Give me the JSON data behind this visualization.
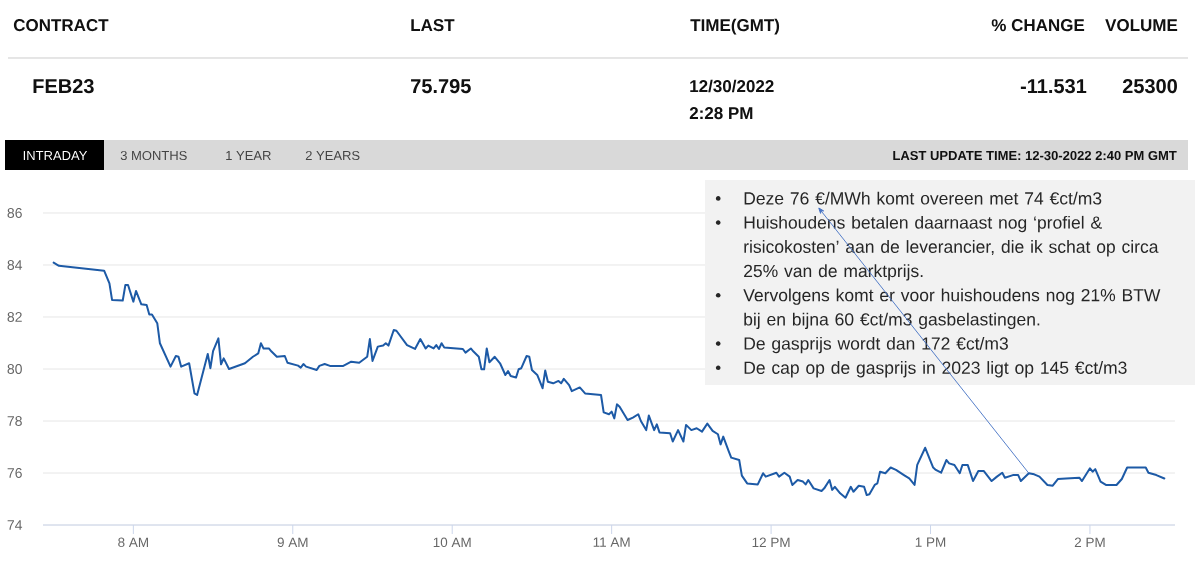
{
  "chart_data": {
    "type": "line",
    "color": "#1d5aa6",
    "x": [
      "2022-12-30T07:30",
      "2022-12-30T07:32",
      "2022-12-30T07:49",
      "2022-12-30T07:51",
      "2022-12-30T07:52",
      "2022-12-30T07:56",
      "2022-12-30T07:57",
      "2022-12-30T07:58",
      "2022-12-30T08:00",
      "2022-12-30T08:01",
      "2022-12-30T08:03",
      "2022-12-30T08:05",
      "2022-12-30T08:06",
      "2022-12-30T08:07",
      "2022-12-30T08:09",
      "2022-12-30T08:10",
      "2022-12-30T08:14",
      "2022-12-30T08:16",
      "2022-12-30T08:17",
      "2022-12-30T08:18",
      "2022-12-30T08:21",
      "2022-12-30T08:23",
      "2022-12-30T08:24",
      "2022-12-30T08:28",
      "2022-12-30T08:29",
      "2022-12-30T08:30",
      "2022-12-30T08:32",
      "2022-12-30T08:33",
      "2022-12-30T08:34",
      "2022-12-30T08:36",
      "2022-12-30T08:42",
      "2022-12-30T08:45",
      "2022-12-30T08:47",
      "2022-12-30T08:48",
      "2022-12-30T08:49",
      "2022-12-30T08:51",
      "2022-12-30T08:52",
      "2022-12-30T08:54",
      "2022-12-30T08:57",
      "2022-12-30T08:58",
      "2022-12-30T09:02",
      "2022-12-30T09:03",
      "2022-12-30T09:04",
      "2022-12-30T09:05",
      "2022-12-30T09:09",
      "2022-12-30T09:10",
      "2022-12-30T09:12",
      "2022-12-30T09:14",
      "2022-12-30T09:19",
      "2022-12-30T09:22",
      "2022-12-30T09:25",
      "2022-12-30T09:28",
      "2022-12-30T09:29",
      "2022-12-30T09:30",
      "2022-12-30T09:32",
      "2022-12-30T09:34",
      "2022-12-30T09:35",
      "2022-12-30T09:36",
      "2022-12-30T09:38",
      "2022-12-30T09:39",
      "2022-12-30T09:43",
      "2022-12-30T09:46",
      "2022-12-30T09:48",
      "2022-12-30T09:50",
      "2022-12-30T09:51",
      "2022-12-30T09:53",
      "2022-12-30T09:54",
      "2022-12-30T09:55",
      "2022-12-30T09:56",
      "2022-12-30T09:57",
      "2022-12-30T10:04",
      "2022-12-30T10:05",
      "2022-12-30T10:07",
      "2022-12-30T10:08",
      "2022-12-30T10:10",
      "2022-12-30T10:11",
      "2022-12-30T10:12",
      "2022-12-30T10:13",
      "2022-12-30T10:14",
      "2022-12-30T10:16",
      "2022-12-30T10:18",
      "2022-12-30T10:20",
      "2022-12-30T10:21",
      "2022-12-30T10:22",
      "2022-12-30T10:24",
      "2022-12-30T10:25",
      "2022-12-30T10:26",
      "2022-12-30T10:28",
      "2022-12-30T10:29",
      "2022-12-30T10:30",
      "2022-12-30T10:32",
      "2022-12-30T10:34",
      "2022-12-30T10:35",
      "2022-12-30T10:36",
      "2022-12-30T10:38",
      "2022-12-30T10:40",
      "2022-12-30T10:41",
      "2022-12-30T10:42",
      "2022-12-30T10:44",
      "2022-12-30T10:45",
      "2022-12-30T10:48",
      "2022-12-30T10:50",
      "2022-12-30T10:56",
      "2022-12-30T10:57",
      "2022-12-30T10:59",
      "2022-12-30T11:00",
      "2022-12-30T11:01",
      "2022-12-30T11:02",
      "2022-12-30T11:03",
      "2022-12-30T11:06",
      "2022-12-30T11:08",
      "2022-12-30T11:10",
      "2022-12-30T11:11",
      "2022-12-30T11:13",
      "2022-12-30T11:14",
      "2022-12-30T11:16",
      "2022-12-30T11:17",
      "2022-12-30T11:18",
      "2022-12-30T11:22",
      "2022-12-30T11:23",
      "2022-12-30T11:25",
      "2022-12-30T11:27",
      "2022-12-30T11:28",
      "2022-12-30T11:30",
      "2022-12-30T11:32",
      "2022-12-30T11:34",
      "2022-12-30T11:36",
      "2022-12-30T11:38",
      "2022-12-30T11:40",
      "2022-12-30T11:41",
      "2022-12-30T11:42",
      "2022-12-30T11:44",
      "2022-12-30T11:45",
      "2022-12-30T11:48",
      "2022-12-30T11:49",
      "2022-12-30T11:51",
      "2022-12-30T11:55",
      "2022-12-30T11:57",
      "2022-12-30T11:58",
      "2022-12-30T12:02",
      "2022-12-30T12:03",
      "2022-12-30T12:05",
      "2022-12-30T12:07",
      "2022-12-30T12:08",
      "2022-12-30T12:10",
      "2022-12-30T12:12",
      "2022-12-30T12:13",
      "2022-12-30T12:14",
      "2022-12-30T12:16",
      "2022-12-30T12:19",
      "2022-12-30T12:20",
      "2022-12-30T12:22",
      "2022-12-30T12:23",
      "2022-12-30T12:24",
      "2022-12-30T12:26",
      "2022-12-30T12:28",
      "2022-12-30T12:30",
      "2022-12-30T12:31",
      "2022-12-30T12:33",
      "2022-12-30T12:35",
      "2022-12-30T12:36",
      "2022-12-30T12:37",
      "2022-12-30T12:39",
      "2022-12-30T12:40",
      "2022-12-30T12:41",
      "2022-12-30T12:43",
      "2022-12-30T12:45",
      "2022-12-30T12:47",
      "2022-12-30T12:50",
      "2022-12-30T12:52",
      "2022-12-30T12:54",
      "2022-12-30T12:55",
      "2022-12-30T12:58",
      "2022-12-30T13:01",
      "2022-12-30T13:02",
      "2022-12-30T13:04",
      "2022-12-30T13:06",
      "2022-12-30T13:07",
      "2022-12-30T13:09",
      "2022-12-30T13:11",
      "2022-12-30T13:12",
      "2022-12-30T13:14",
      "2022-12-30T13:16",
      "2022-12-30T13:18",
      "2022-12-30T13:20",
      "2022-12-30T13:23",
      "2022-12-30T13:25",
      "2022-12-30T13:27",
      "2022-12-30T13:28",
      "2022-12-30T13:31",
      "2022-12-30T13:33",
      "2022-12-30T13:34",
      "2022-12-30T13:37",
      "2022-12-30T13:39",
      "2022-12-30T13:41",
      "2022-12-30T13:44",
      "2022-12-30T13:46",
      "2022-12-30T13:48",
      "2022-12-30T13:51",
      "2022-12-30T13:56",
      "2022-12-30T13:57",
      "2022-12-30T14:00",
      "2022-12-30T14:01",
      "2022-12-30T14:02",
      "2022-12-30T14:04",
      "2022-12-30T14:06",
      "2022-12-30T14:10",
      "2022-12-30T14:12",
      "2022-12-30T14:14",
      "2022-12-30T14:18",
      "2022-12-30T14:21",
      "2022-12-30T14:22",
      "2022-12-30T14:25",
      "2022-12-30T14:28"
    ],
    "values": [
      84.09,
      83.97,
      83.78,
      83.29,
      82.65,
      82.63,
      83.23,
      83.23,
      82.59,
      83.0,
      82.49,
      82.46,
      82.1,
      82.1,
      81.76,
      80.99,
      80.09,
      80.5,
      80.47,
      80.09,
      80.22,
      79.06,
      79.0,
      80.58,
      80.03,
      80.69,
      81.18,
      80.18,
      80.41,
      80.0,
      80.22,
      80.47,
      80.6,
      80.99,
      80.79,
      80.79,
      80.67,
      80.47,
      80.5,
      80.24,
      80.13,
      80.05,
      80.19,
      80.09,
      79.96,
      80.12,
      80.19,
      80.12,
      80.12,
      80.28,
      80.24,
      80.47,
      81.15,
      80.31,
      80.86,
      80.9,
      80.99,
      80.9,
      81.5,
      81.47,
      80.92,
      80.77,
      81.15,
      80.79,
      80.9,
      80.79,
      80.92,
      80.77,
      80.99,
      80.83,
      80.77,
      80.63,
      80.79,
      80.67,
      80.47,
      79.99,
      79.99,
      80.79,
      80.26,
      80.47,
      80.22,
      79.77,
      79.92,
      79.73,
      79.67,
      79.99,
      80.03,
      80.5,
      80.47,
      79.96,
      79.77,
      79.26,
      79.94,
      79.51,
      79.45,
      79.54,
      79.45,
      79.62,
      79.38,
      79.15,
      79.29,
      79.06,
      79.0,
      78.33,
      78.26,
      78.36,
      78.1,
      78.64,
      78.55,
      78.04,
      78.13,
      78.26,
      78.0,
      77.65,
      78.21,
      77.65,
      77.87,
      77.56,
      77.53,
      77.21,
      77.65,
      77.21,
      77.85,
      77.65,
      77.72,
      77.59,
      77.9,
      77.62,
      77.49,
      77.1,
      77.4,
      76.85,
      76.59,
      76.5,
      75.9,
      75.6,
      75.56,
      75.99,
      75.86,
      76.01,
      75.86,
      76.01,
      75.86,
      75.54,
      75.73,
      75.67,
      75.56,
      75.73,
      75.41,
      75.31,
      75.41,
      75.73,
      75.35,
      75.47,
      75.22,
      75.05,
      75.47,
      75.28,
      75.51,
      75.47,
      75.15,
      75.18,
      75.54,
      75.6,
      76.05,
      75.99,
      76.21,
      76.12,
      75.92,
      75.79,
      75.54,
      76.31,
      76.97,
      76.21,
      76.12,
      76.01,
      76.5,
      76.37,
      76.31,
      75.99,
      76.31,
      76.31,
      75.69,
      76.08,
      76.08,
      75.69,
      75.86,
      76.01,
      75.82,
      75.92,
      75.92,
      75.69,
      75.99,
      75.95,
      75.86,
      75.54,
      75.51,
      75.77,
      75.79,
      75.82,
      75.69,
      76.18,
      76.05,
      76.15,
      75.67,
      75.54,
      75.54,
      75.77,
      76.21,
      76.21,
      76.21,
      76.01,
      75.92,
      75.79
    ],
    "xlim": [
      "2022-12-30T07:26",
      "2022-12-30T14:32"
    ],
    "ylim": [
      74,
      86
    ],
    "xticks": [
      {
        "value": "2022-12-30T08:00",
        "label": "8 AM"
      },
      {
        "value": "2022-12-30T09:00",
        "label": "9 AM"
      },
      {
        "value": "2022-12-30T10:00",
        "label": "10 AM"
      },
      {
        "value": "2022-12-30T11:00",
        "label": "11 AM"
      },
      {
        "value": "2022-12-30T12:00",
        "label": "12 PM"
      },
      {
        "value": "2022-12-30T13:00",
        "label": "1 PM"
      },
      {
        "value": "2022-12-30T14:00",
        "label": "2 PM"
      }
    ],
    "yticks": [
      74,
      76,
      78,
      80,
      82,
      84,
      86
    ],
    "grid": "y",
    "annotations": [
      "CONTRACT",
      "LAST",
      "TIME(GMT)",
      "% CHANGE",
      "VOLUME",
      "FEB23",
      "75.795",
      "12/30/2022",
      "2:28 PM",
      "-11.531",
      "25300",
      "INTRADAY",
      "3 MONTHS",
      "1 YEAR",
      "2 YEARS",
      "LAST UPDATE TIME: 12-30-2022 2:40 PM GMT",
      {
        "text": "Deze 76 €/MWh komt overeen met 74 €ct/m3",
        "x": "2022-12-30T13:37",
        "y": 75.99
      },
      "Huishoudens betalen daarnaast nog ‘profiel & risicokosten’ aan de leverancier, die ik schat op circa 25% van de marktprijs.",
      "Vervolgens komt er voor huishoudens nog 21% BTW bij en bijna 60 €ct/m3 gasbelastingen.",
      "De gasprijs wordt dan 172 €ct/m3",
      "De cap op de gasprijs in 2023 ligt op 145 €ct/m3"
    ]
  }
}
